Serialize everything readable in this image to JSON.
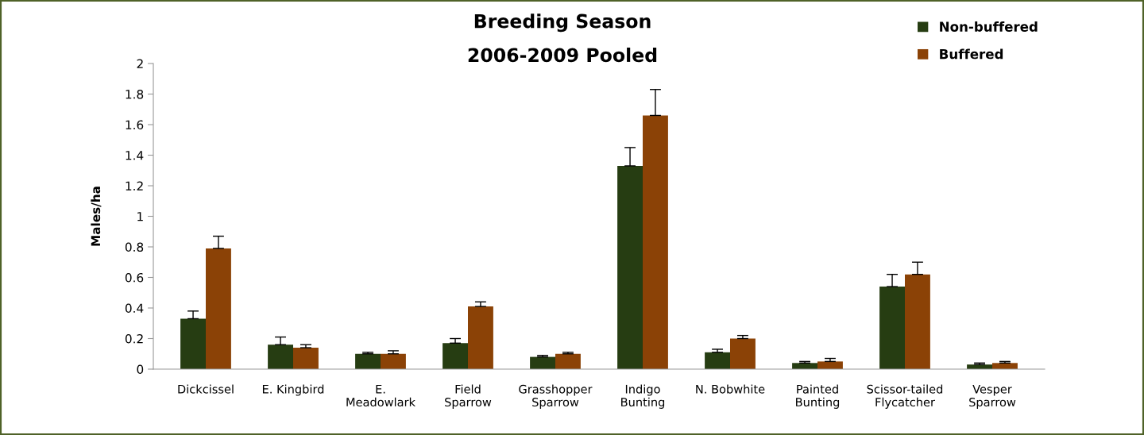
{
  "chart_data": {
    "type": "bar",
    "title": "Breeding Season\n2006-2009 Pooled",
    "ylabel": "Males/ha",
    "categories": [
      "Dickcissel",
      "E. Kingbird",
      "E.\nMeadowlark",
      "Field\nSparrow",
      "Grasshopper\nSparrow",
      "Indigo\nBunting",
      "N. Bobwhite",
      "Painted\nBunting",
      "Scissor-tailed\nFlycatcher",
      "Vesper\nSparrow"
    ],
    "series": [
      {
        "name": "Non-buffered",
        "color": "#263d12",
        "values": [
          0.33,
          0.16,
          0.1,
          0.17,
          0.08,
          1.33,
          0.11,
          0.04,
          0.54,
          0.03
        ],
        "errors": [
          [
            0.33,
            0.38
          ],
          [
            0.16,
            0.21
          ],
          [
            0.1,
            0.11
          ],
          [
            0.17,
            0.2
          ],
          [
            0.08,
            0.09
          ],
          [
            1.33,
            1.45
          ],
          [
            0.11,
            0.13
          ],
          [
            0.04,
            0.05
          ],
          [
            0.54,
            0.62
          ],
          [
            0.03,
            0.04
          ]
        ]
      },
      {
        "name": "Buffered",
        "color": "#8b4206",
        "values": [
          0.79,
          0.14,
          0.1,
          0.41,
          0.1,
          1.66,
          0.2,
          0.05,
          0.62,
          0.04
        ],
        "errors": [
          [
            0.79,
            0.87
          ],
          [
            0.14,
            0.16
          ],
          [
            0.1,
            0.12
          ],
          [
            0.41,
            0.44
          ],
          [
            0.1,
            0.11
          ],
          [
            1.66,
            1.83
          ],
          [
            0.2,
            0.22
          ],
          [
            0.05,
            0.07
          ],
          [
            0.62,
            0.7
          ],
          [
            0.04,
            0.05
          ]
        ]
      }
    ],
    "ylim": [
      0,
      2
    ],
    "yticks": [
      0,
      0.2,
      0.4,
      0.6,
      0.8,
      1,
      1.2,
      1.4,
      1.6,
      1.8,
      2
    ],
    "grid": false,
    "legend": "top right"
  }
}
